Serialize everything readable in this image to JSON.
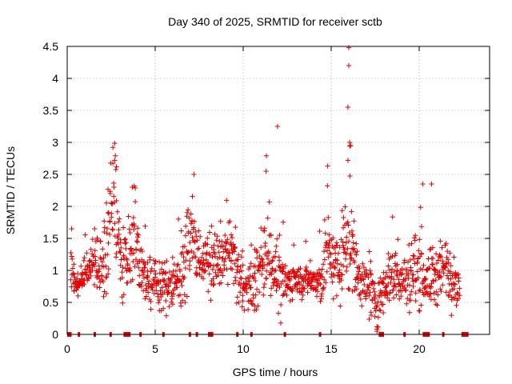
{
  "chart_data": {
    "type": "scatter",
    "title": "Day 340 of 2025, SRMTID for receiver sctb",
    "xlabel": "GPS time / hours",
    "ylabel": "SRMTID / TECUs",
    "xlim": [
      0,
      24
    ],
    "ylim": [
      0,
      4.5
    ],
    "x_ticks": [
      0,
      5,
      10,
      15,
      20
    ],
    "x_tick_labels": [
      "0",
      "5",
      "10",
      "15",
      "20"
    ],
    "y_ticks": [
      0,
      0.5,
      1,
      1.5,
      2,
      2.5,
      3,
      3.5,
      4,
      4.5
    ],
    "y_tick_labels": [
      "0",
      "0.5",
      "1",
      "1.5",
      "2",
      "2.5",
      "3",
      "3.5",
      "4",
      "4.5"
    ],
    "grid": true,
    "marker": "plus",
    "color": "#e00000",
    "series": [
      {
        "name": "sctb",
        "activity_envelope": [
          [
            0.2,
            0.8,
            1.2
          ],
          [
            0.6,
            0.6,
            0.9
          ],
          [
            1.0,
            0.8,
            1.1
          ],
          [
            1.4,
            0.9,
            1.3
          ],
          [
            1.8,
            0.8,
            1.2
          ],
          [
            2.2,
            0.7,
            1.5
          ],
          [
            2.5,
            1.3,
            2.6
          ],
          [
            2.8,
            1.2,
            2.3
          ],
          [
            3.1,
            0.7,
            1.5
          ],
          [
            3.5,
            0.9,
            1.2
          ],
          [
            3.8,
            1.2,
            2.2
          ],
          [
            4.2,
            0.8,
            1.2
          ],
          [
            4.6,
            0.6,
            1.1
          ],
          [
            5.0,
            0.6,
            1.0
          ],
          [
            5.5,
            0.5,
            1.0
          ],
          [
            6.0,
            0.5,
            1.0
          ],
          [
            6.5,
            0.7,
            1.3
          ],
          [
            7.0,
            0.9,
            1.9
          ],
          [
            7.4,
            1.0,
            1.6
          ],
          [
            7.8,
            0.9,
            1.3
          ],
          [
            8.2,
            0.8,
            1.5
          ],
          [
            8.6,
            0.9,
            1.3
          ],
          [
            9.0,
            0.9,
            1.6
          ],
          [
            9.4,
            0.9,
            1.5
          ],
          [
            9.8,
            0.6,
            1.2
          ],
          [
            10.2,
            0.5,
            0.9
          ],
          [
            10.6,
            0.5,
            1.0
          ],
          [
            11.0,
            0.7,
            1.4
          ],
          [
            11.3,
            0.9,
            2.0
          ],
          [
            11.7,
            0.8,
            1.3
          ],
          [
            12.1,
            0.4,
            1.1
          ],
          [
            12.5,
            0.6,
            1.0
          ],
          [
            13.0,
            0.7,
            1.0
          ],
          [
            13.5,
            0.7,
            1.0
          ],
          [
            14.0,
            0.7,
            1.0
          ],
          [
            14.4,
            0.5,
            1.0
          ],
          [
            14.8,
            0.9,
            1.9
          ],
          [
            15.2,
            0.8,
            1.3
          ],
          [
            15.6,
            0.7,
            1.5
          ],
          [
            16.0,
            1.0,
            2.3
          ],
          [
            16.4,
            0.7,
            1.3
          ],
          [
            16.8,
            0.6,
            1.1
          ],
          [
            17.2,
            0.4,
            0.9
          ],
          [
            17.6,
            0.2,
            0.6
          ],
          [
            18.0,
            0.6,
            1.0
          ],
          [
            18.4,
            0.7,
            1.3
          ],
          [
            18.8,
            0.6,
            1.1
          ],
          [
            19.2,
            0.6,
            1.1
          ],
          [
            19.6,
            0.6,
            1.3
          ],
          [
            20.0,
            0.7,
            1.6
          ],
          [
            20.4,
            0.6,
            1.0
          ],
          [
            20.8,
            0.6,
            1.3
          ],
          [
            21.2,
            0.6,
            1.2
          ],
          [
            21.6,
            0.7,
            1.5
          ],
          [
            22.0,
            0.6,
            1.1
          ],
          [
            22.3,
            0.6,
            0.9
          ]
        ],
        "notable_points": [
          {
            "x": 2.7,
            "y": 2.72
          },
          {
            "x": 2.8,
            "y": 2.62
          },
          {
            "x": 3.7,
            "y": 2.3
          },
          {
            "x": 7.2,
            "y": 2.5
          },
          {
            "x": 11.3,
            "y": 2.55
          },
          {
            "x": 11.95,
            "y": 3.25
          },
          {
            "x": 14.8,
            "y": 2.63
          },
          {
            "x": 15.95,
            "y": 2.72
          },
          {
            "x": 15.95,
            "y": 3.55
          },
          {
            "x": 16.0,
            "y": 4.2
          },
          {
            "x": 16.0,
            "y": 4.48
          },
          {
            "x": 16.05,
            "y": 3.0
          },
          {
            "x": 16.1,
            "y": 2.95
          },
          {
            "x": 20.2,
            "y": 2.35
          },
          {
            "x": 20.7,
            "y": 2.35
          }
        ],
        "zero_segments": [
          [
            0.0,
            0.25
          ],
          [
            0.6,
            0.7
          ],
          [
            1.5,
            1.6
          ],
          [
            2.4,
            2.5
          ],
          [
            3.2,
            3.6
          ],
          [
            4.1,
            4.2
          ],
          [
            5.4,
            5.45
          ],
          [
            6.9,
            7.0
          ],
          [
            7.3,
            7.35
          ],
          [
            8.0,
            8.3
          ],
          [
            9.6,
            9.7
          ],
          [
            10.4,
            10.5
          ],
          [
            12.3,
            12.4
          ],
          [
            14.3,
            14.35
          ],
          [
            17.7,
            18.0
          ],
          [
            19.1,
            19.15
          ],
          [
            20.2,
            20.6
          ],
          [
            21.3,
            21.35
          ],
          [
            22.4,
            22.8
          ]
        ]
      }
    ]
  }
}
